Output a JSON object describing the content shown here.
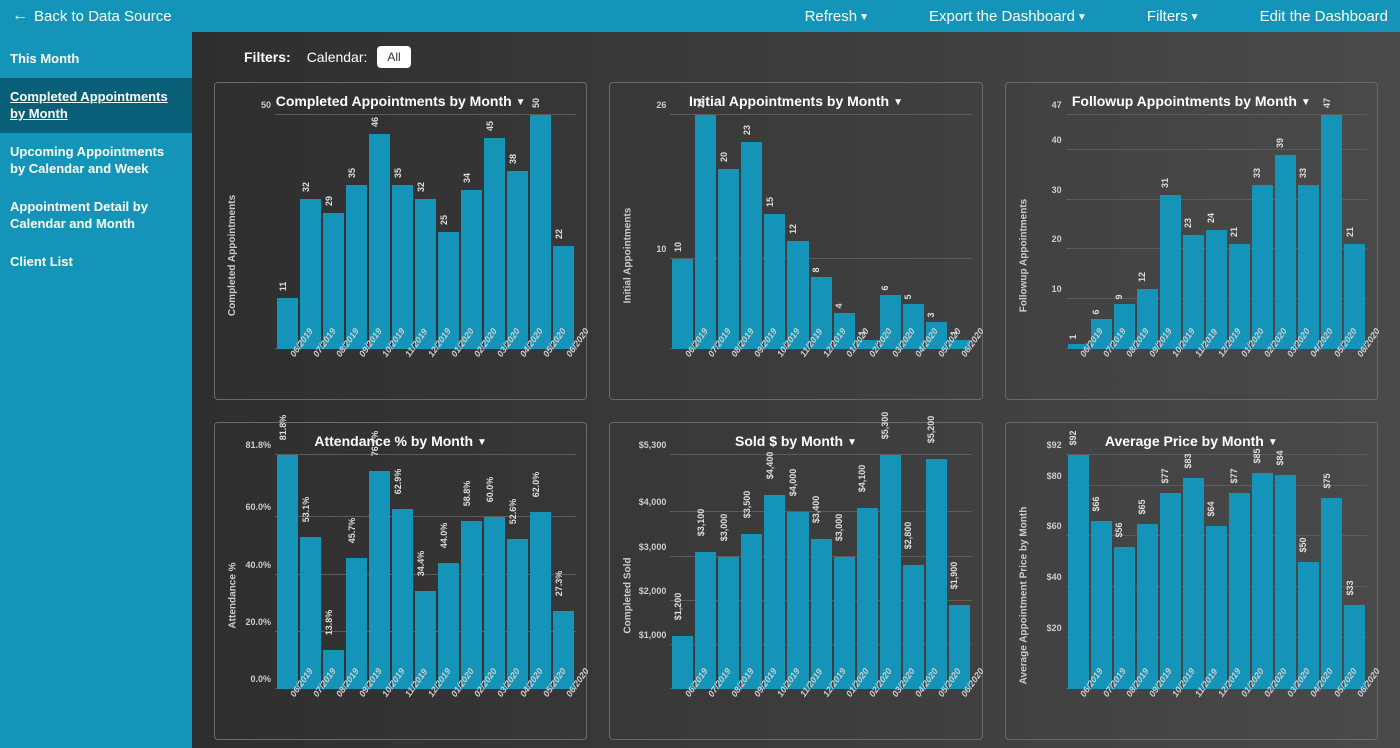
{
  "topbar": {
    "back_label": "Back to Data Source",
    "actions": {
      "refresh": "Refresh",
      "export": "Export the Dashboard",
      "filters": "Filters",
      "edit": "Edit the Dashboard"
    }
  },
  "sidebar": {
    "items": [
      {
        "label": "This Month"
      },
      {
        "label": "Completed Appointments by Month"
      },
      {
        "label": "Upcoming Appointments by Calendar and Week"
      },
      {
        "label": "Appointment Detail by Calendar and Month"
      },
      {
        "label": "Client List"
      }
    ],
    "active_index": 1
  },
  "filters": {
    "heading": "Filters:",
    "calendar_label": "Calendar:",
    "calendar_value": "All"
  },
  "shared": {
    "categories": [
      "06/2019",
      "07/2019",
      "08/2019",
      "09/2019",
      "10/2019",
      "11/2019",
      "12/2019",
      "01/2020",
      "02/2020",
      "03/2020",
      "04/2020",
      "05/2020",
      "06/2020"
    ],
    "bar_color": "#1494b8",
    "grid_color": "#5c5c5c",
    "text_color": "#cccccc",
    "background_gradient": [
      "#2e2e2e",
      "#4a4a4a"
    ]
  },
  "charts": [
    {
      "id": "completed",
      "title": "Completed Appointments by Month",
      "ylabel": "Completed Appointments",
      "type": "bar",
      "y_max": 50,
      "y_ticks": [
        50
      ],
      "value_format": "int",
      "values": [
        11,
        32,
        29,
        35,
        46,
        35,
        32,
        25,
        34,
        45,
        38,
        50,
        22
      ]
    },
    {
      "id": "initial",
      "title": "Initial Appointments by Month",
      "ylabel": "Initial Appointments",
      "type": "bar",
      "y_max": 26,
      "y_ticks": [
        10,
        26
      ],
      "value_format": "int",
      "values": [
        10,
        26,
        20,
        23,
        15,
        12,
        8,
        4,
        1,
        6,
        5,
        3,
        1
      ]
    },
    {
      "id": "followup",
      "title": "Followup Appointments by Month",
      "ylabel": "Followup Appointments",
      "type": "bar",
      "y_max": 47,
      "y_ticks": [
        10,
        20,
        30,
        40,
        47
      ],
      "value_format": "int",
      "values": [
        1,
        6,
        9,
        12,
        31,
        23,
        24,
        21,
        33,
        39,
        33,
        47,
        21
      ]
    },
    {
      "id": "attendance",
      "title": "Attendance % by Month",
      "ylabel": "Attendance %",
      "type": "bar",
      "y_max": 81.8,
      "y_ticks_labels": [
        [
          0,
          "0.0%"
        ],
        [
          20,
          "20.0%"
        ],
        [
          40,
          "40.0%"
        ],
        [
          60,
          "60.0%"
        ],
        [
          81.8,
          "81.8%"
        ]
      ],
      "value_format": "pct1",
      "values": [
        81.8,
        53.1,
        13.8,
        45.7,
        76.1,
        62.9,
        34.4,
        44.0,
        58.8,
        60.0,
        52.6,
        62.0,
        27.3
      ]
    },
    {
      "id": "sold",
      "title": "Sold $ by Month",
      "ylabel": "Completed Sold",
      "type": "bar",
      "y_max": 5300,
      "y_ticks_labels": [
        [
          1000,
          "$1,000"
        ],
        [
          2000,
          "$2,000"
        ],
        [
          3000,
          "$3,000"
        ],
        [
          4000,
          "$4,000"
        ],
        [
          5300,
          "$5,300"
        ]
      ],
      "value_format": "money0",
      "values": [
        1200,
        3100,
        3000,
        3500,
        4400,
        4000,
        3400,
        3000,
        4100,
        5300,
        2800,
        5200,
        1900
      ]
    },
    {
      "id": "avgprice",
      "title": "Average Price by Month",
      "ylabel": "Average Appointment Price by Month",
      "type": "bar",
      "y_max": 92,
      "y_ticks_labels": [
        [
          20,
          "$20"
        ],
        [
          40,
          "$40"
        ],
        [
          60,
          "$60"
        ],
        [
          80,
          "$80"
        ],
        [
          92,
          "$92"
        ]
      ],
      "value_format": "money_small",
      "values": [
        92,
        66,
        56,
        65,
        77,
        83,
        64,
        77,
        85,
        84,
        50,
        75,
        33
      ]
    }
  ]
}
